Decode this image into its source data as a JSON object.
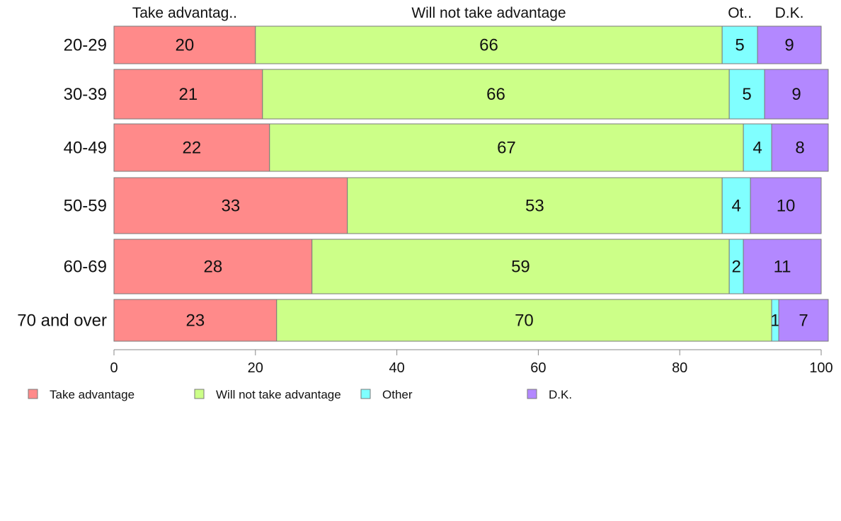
{
  "chart_data": {
    "type": "bar",
    "orientation": "horizontal",
    "stacked": true,
    "categories": [
      "20-29",
      "30-39",
      "40-49",
      "50-59",
      "60-69",
      "70 and over"
    ],
    "series": [
      {
        "name": "Take advantage",
        "color": "#ff8a8a",
        "values": [
          20,
          21,
          22,
          33,
          28,
          23
        ]
      },
      {
        "name": "Will not take advantage",
        "color": "#ccff88",
        "values": [
          66,
          66,
          67,
          53,
          59,
          70
        ]
      },
      {
        "name": "Other",
        "color": "#80ffff",
        "values": [
          5,
          5,
          4,
          4,
          2,
          1
        ]
      },
      {
        "name": "D.K.",
        "color": "#b388ff",
        "values": [
          9,
          9,
          8,
          10,
          11,
          7
        ]
      }
    ],
    "column_headers": [
      "Take advantag..",
      "Will not take advantage",
      "Ot..",
      "D.K."
    ],
    "xlim": [
      0,
      100
    ],
    "xticks": [
      0,
      20,
      40,
      60,
      80,
      100
    ],
    "legend_position": "bottom-left",
    "grid": false
  }
}
